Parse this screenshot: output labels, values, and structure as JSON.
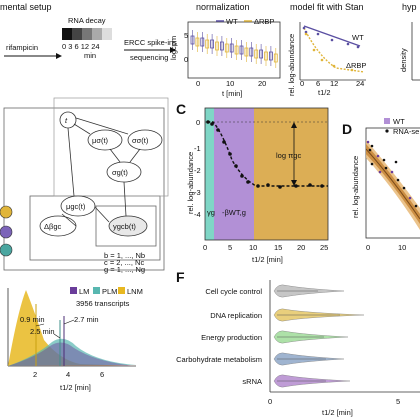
{
  "header": {
    "setup_title": "mental setup",
    "normalization_title": "normalization",
    "model_fit_title": "model fit with Stan",
    "hyp_title": "hyp"
  },
  "setup": {
    "rifampicin": "rifampicin",
    "rna_decay": "RNA decay",
    "timepoints": "0 3 6 12 24",
    "min": "min",
    "ercc": "ERCC spike-ins",
    "sequencing": "sequencing"
  },
  "normalization_plot": {
    "legend": [
      "WT",
      "ΔRBP"
    ],
    "ylabel": "logcpm",
    "xlabel": "t [min]",
    "yticks": [
      "5",
      "0"
    ],
    "xticks": [
      "0",
      "10",
      "20"
    ]
  },
  "modelfit_plot": {
    "ylabel": "rel. log-abundance",
    "xlabel": "t1/2",
    "xticks": [
      "0",
      "6",
      "12",
      "24"
    ],
    "wt_label": "WT",
    "drbp_label": "ΔRBP"
  },
  "hyp_plot": {
    "ylabel": "density"
  },
  "graphical_model": {
    "nodes": {
      "t": "t",
      "mu_sigma": "μσ(t)",
      "sigma_sigma": "σσ(t)",
      "sigma_g": "σg(t)",
      "delta_beta": "Δβgc",
      "mu_gc": "μgc(t)",
      "y_gcb": "ygcb(t)"
    },
    "plates": [
      "b = 1, ..., Nb",
      "c = 2, ..., Nc",
      "g = 1, ..., Ng"
    ]
  },
  "panel_c": {
    "letter": "C",
    "ylabel": "rel. log-abundance",
    "xlabel": "t1/2 [min]",
    "xticks": [
      "0",
      "5",
      "10",
      "15",
      "20",
      "25"
    ],
    "yticks": [
      "0",
      "-1",
      "-2",
      "-3",
      "-4"
    ],
    "gamma_label": "γg",
    "beta_label": "-βWT,g",
    "log_pi_label": "log πgc"
  },
  "panel_d": {
    "letter": "D",
    "ylabel": "rel. log-abundance",
    "legend": [
      "WT",
      "RNA-se"
    ],
    "xticks": [
      "0",
      "10"
    ]
  },
  "panel_e": {
    "legend": [
      "LM",
      "PLM",
      "LNM"
    ],
    "transcripts": "3956 transcripts",
    "annot": [
      "0.9 min",
      "2.5 min",
      "2.7 min"
    ],
    "xlabel": "t1/2 [min]",
    "xticks": [
      "2",
      "4",
      "6"
    ]
  },
  "panel_f": {
    "letter": "F",
    "categories": [
      "Cell cycle control",
      "DNA replication",
      "Energy production",
      "Carbohydrate metabolism",
      "sRNA"
    ],
    "xlabel": "t1/2 [min]",
    "xticks": [
      "0",
      "5"
    ]
  },
  "colors": {
    "wt_purple": "#5a4fa2",
    "drbp_yellow": "#e0b53a",
    "teal": "#4aa6a0",
    "lnm_yellow": "#e8b821",
    "lm_purple": "#6a3d9a",
    "plm_teal": "#58b7b0",
    "panelc_teal": "#7fd6c6",
    "panelc_purple": "#b290d6",
    "panelc_orange": "#dcae55",
    "f_grey": "#bdbdbd",
    "f_yellow": "#e6c766",
    "f_green": "#9fdc9a",
    "f_blue": "#8fa8c8",
    "f_purple": "#b58bd0"
  }
}
